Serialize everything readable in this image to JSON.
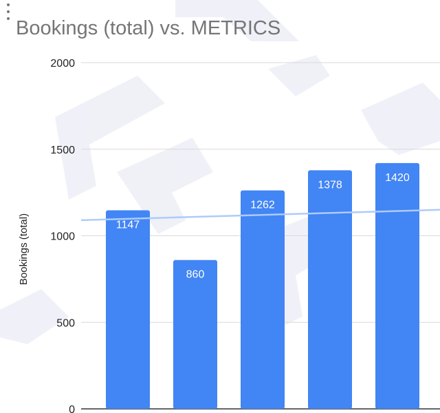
{
  "menu": {
    "icon": "more-vertical-icon"
  },
  "chart_data": {
    "type": "bar",
    "title": "Bookings (total) vs. METRICS",
    "ylabel": "Bookings (total)",
    "xlabel": "",
    "ylim": [
      0,
      2000
    ],
    "yticks": [
      "2000",
      "1500",
      "1000",
      "500",
      "0"
    ],
    "yticks_values": [
      2000,
      1500,
      1000,
      500,
      0
    ],
    "grid": true,
    "series": [
      {
        "values": [
          1147,
          860,
          1262,
          1378,
          1420
        ],
        "labels": [
          "1147",
          "860",
          "1262",
          "1378",
          "1420"
        ]
      }
    ],
    "trendline": {
      "start": 1090,
      "end": 1150
    },
    "colors": {
      "bar": "#4285f4",
      "trend": "#aecbfa",
      "grid": "#d9d9d9",
      "axis": "#333333"
    }
  }
}
